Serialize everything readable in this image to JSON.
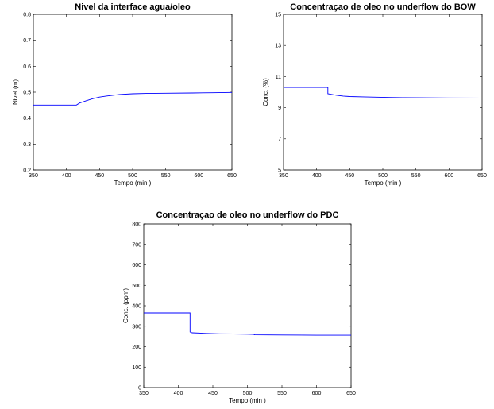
{
  "chart_data": [
    {
      "type": "line",
      "title": "Nivel da interface agua/oleo",
      "xlabel": "Tempo (min )",
      "ylabel": "Nivel (m)",
      "xlim": [
        350,
        650
      ],
      "ylim": [
        0.2,
        0.8
      ],
      "xticks": [
        350,
        400,
        450,
        500,
        550,
        600,
        650
      ],
      "yticks": [
        0.2,
        0.3,
        0.4,
        0.5,
        0.6,
        0.7,
        0.8
      ],
      "ytick_labels": [
        "0.2",
        "0.3",
        "0.4",
        "0.5",
        "0.6",
        "0.7",
        "0.8"
      ],
      "series": [
        {
          "color": "#0000ff",
          "x": [
            350,
            415,
            420,
            430,
            440,
            450,
            460,
            470,
            480,
            500,
            520,
            550,
            590,
            620,
            650
          ],
          "y": [
            0.45,
            0.45,
            0.458,
            0.467,
            0.475,
            0.481,
            0.485,
            0.488,
            0.491,
            0.494,
            0.495,
            0.496,
            0.497,
            0.498,
            0.499
          ]
        }
      ]
    },
    {
      "type": "line",
      "title": "Concentraçao de oleo no underflow do BOW",
      "xlabel": "Tempo (min )",
      "ylabel": "Conc. (%)",
      "xlim": [
        350,
        650
      ],
      "ylim": [
        5,
        15
      ],
      "xticks": [
        350,
        400,
        450,
        500,
        550,
        600,
        650
      ],
      "yticks": [
        5,
        7,
        9,
        11,
        13,
        15
      ],
      "ytick_labels": [
        "5",
        "7",
        "9",
        "11",
        "13",
        "15"
      ],
      "series": [
        {
          "color": "#0000ff",
          "x": [
            350,
            417,
            417,
            420,
            430,
            440,
            450,
            470,
            490,
            510,
            530,
            560,
            600,
            650
          ],
          "y": [
            10.3,
            10.3,
            9.9,
            9.88,
            9.8,
            9.75,
            9.72,
            9.7,
            9.68,
            9.66,
            9.65,
            9.64,
            9.63,
            9.62
          ]
        }
      ]
    },
    {
      "type": "line",
      "title": "Concentraçao de oleo no underflow do PDC",
      "xlabel": "Tempo (min )",
      "ylabel": "Conc. (ppm)",
      "xlim": [
        350,
        650
      ],
      "ylim": [
        0,
        800
      ],
      "xticks": [
        350,
        400,
        450,
        500,
        550,
        600,
        650
      ],
      "yticks": [
        0,
        100,
        200,
        300,
        400,
        500,
        600,
        700,
        800
      ],
      "ytick_labels": [
        "0",
        "100",
        "200",
        "300",
        "400",
        "500",
        "600",
        "700",
        "800"
      ],
      "series": [
        {
          "color": "#0000ff",
          "x": [
            350,
            417,
            417,
            420,
            440,
            460,
            480,
            500,
            510,
            510,
            550,
            600,
            650
          ],
          "y": [
            365,
            365,
            272,
            268,
            265,
            263,
            262,
            261,
            260,
            258,
            257,
            256,
            256
          ]
        }
      ]
    }
  ]
}
